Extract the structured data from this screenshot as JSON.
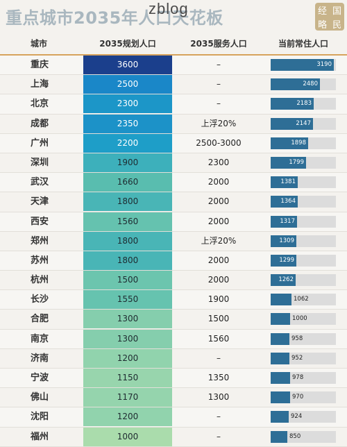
{
  "title": "重点城市2035年人口天花板",
  "watermark": "zblog",
  "seal": [
    "经",
    "国",
    "略",
    "民"
  ],
  "columns": {
    "city": "城市",
    "plan": "2035规划人口",
    "serve": "2035服务人口",
    "resident": "当前常住人口"
  },
  "colors": {
    "header_border": "#d6a35c",
    "bar": "#2e6e96",
    "bar_track": "#dcdcdc",
    "plan_high": "#1b3f8c",
    "plan_low": "#a9dcb0"
  },
  "rows": [
    {
      "city": "重庆",
      "plan": "3600",
      "plan_value": 3600,
      "serve": "–",
      "resident": 3190
    },
    {
      "city": "上海",
      "plan": "2500",
      "plan_value": 2500,
      "serve": "–",
      "resident": 2480
    },
    {
      "city": "北京",
      "plan": "2300",
      "plan_value": 2300,
      "serve": "–",
      "resident": 2183
    },
    {
      "city": "成都",
      "plan": "2350",
      "plan_value": 2350,
      "serve": "上浮20%",
      "resident": 2147
    },
    {
      "city": "广州",
      "plan": "2200",
      "plan_value": 2200,
      "serve": "2500-3000",
      "resident": 1898
    },
    {
      "city": "深圳",
      "plan": "1900",
      "plan_value": 1900,
      "serve": "2300",
      "resident": 1799
    },
    {
      "city": "武汉",
      "plan": "1660",
      "plan_value": 1660,
      "serve": "2000",
      "resident": 1381
    },
    {
      "city": "天津",
      "plan": "1800",
      "plan_value": 1800,
      "serve": "2000",
      "resident": 1364
    },
    {
      "city": "西安",
      "plan": "1560",
      "plan_value": 1560,
      "serve": "2000",
      "resident": 1317
    },
    {
      "city": "郑州",
      "plan": "1800",
      "plan_value": 1800,
      "serve": "上浮20%",
      "resident": 1309
    },
    {
      "city": "苏州",
      "plan": "1800",
      "plan_value": 1800,
      "serve": "2000",
      "resident": 1299
    },
    {
      "city": "杭州",
      "plan": "1500",
      "plan_value": 1500,
      "serve": "2000",
      "resident": 1262
    },
    {
      "city": "长沙",
      "plan": "1550",
      "plan_value": 1550,
      "serve": "1900",
      "resident": 1062
    },
    {
      "city": "合肥",
      "plan": "1300",
      "plan_value": 1300,
      "serve": "1500",
      "resident": 1000
    },
    {
      "city": "南京",
      "plan": "1300",
      "plan_value": 1300,
      "serve": "1560",
      "resident": 958
    },
    {
      "city": "济南",
      "plan": "1200",
      "plan_value": 1200,
      "serve": "–",
      "resident": 952
    },
    {
      "city": "宁波",
      "plan": "1150",
      "plan_value": 1150,
      "serve": "1350",
      "resident": 978
    },
    {
      "city": "佛山",
      "plan": "1170",
      "plan_value": 1170,
      "serve": "1300",
      "resident": 970
    },
    {
      "city": "沈阳",
      "plan": "1200",
      "plan_value": 1200,
      "serve": "–",
      "resident": 924
    },
    {
      "city": "福州",
      "plan": "1000",
      "plan_value": 1000,
      "serve": "–",
      "resident": 850
    }
  ],
  "resident_scale_max": 3300
}
